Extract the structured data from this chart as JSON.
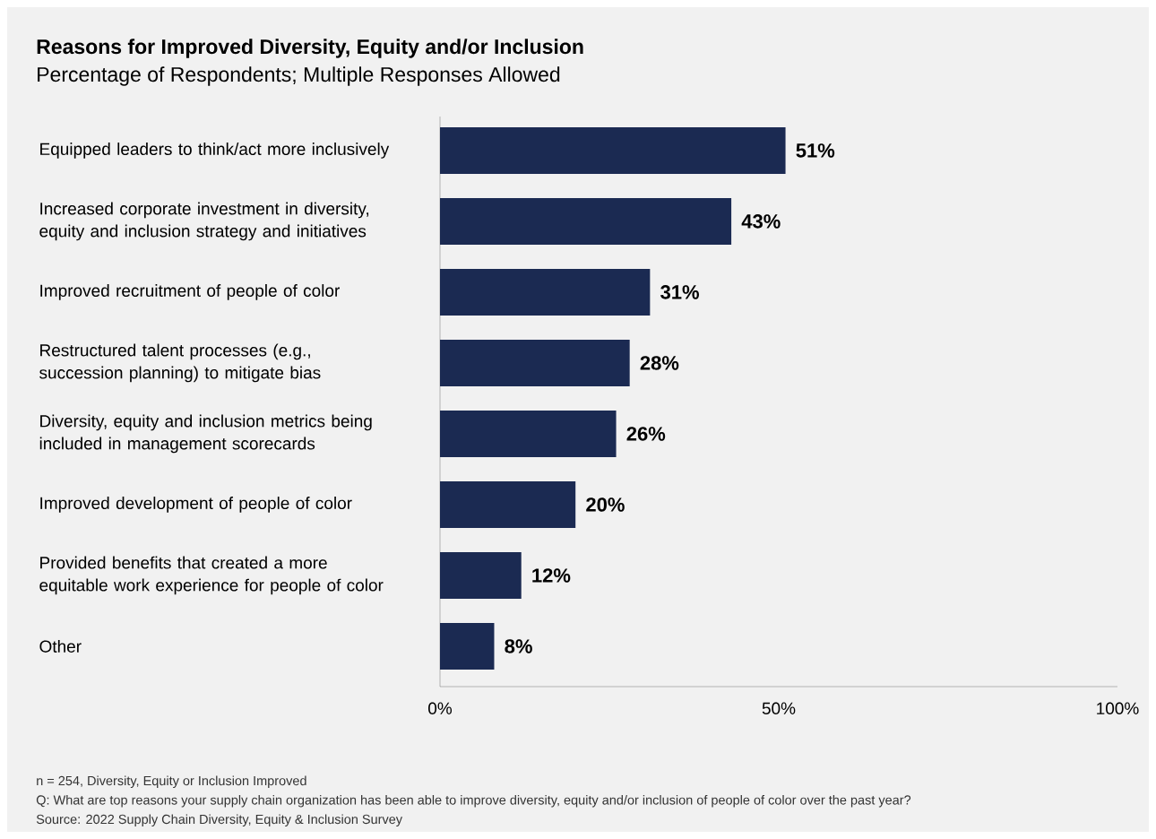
{
  "chart_data": {
    "type": "bar",
    "orientation": "horizontal",
    "title": "Reasons for Improved Diversity, Equity and/or Inclusion",
    "subtitle": "Percentage of Respondents; Multiple Responses Allowed",
    "categories": [
      "Equipped leaders to think/act more inclusively",
      "Increased corporate investment in diversity, equity and inclusion strategy and initiatives",
      "Improved recruitment of people of color",
      "Restructured talent processes (e.g., succession planning) to mitigate bias",
      "Diversity, equity and inclusion metrics being included in management scorecards",
      "Improved development of people of color",
      "Provided benefits that created a more equitable work experience for people of color",
      "Other"
    ],
    "values": [
      51,
      43,
      31,
      28,
      26,
      20,
      12,
      8
    ],
    "value_labels": [
      "51%",
      "43%",
      "31%",
      "28%",
      "26%",
      "20%",
      "12%",
      "8%"
    ],
    "color": "#1b2a52",
    "xlim": [
      0,
      100
    ],
    "xticks": [
      {
        "value": 0,
        "label": "0%"
      },
      {
        "value": 50,
        "label": "50%"
      },
      {
        "value": 100,
        "label": "100%"
      }
    ],
    "grid": false,
    "annotations": [
      "n = 254, Diversity, Equity or Inclusion Improved",
      "Q: What are top reasons your supply chain organization has been able to improve diversity, equity and/or inclusion of people of color over the past year?",
      "Source: 2022 Supply Chain Diversity, Equity & Inclusion Survey"
    ]
  }
}
